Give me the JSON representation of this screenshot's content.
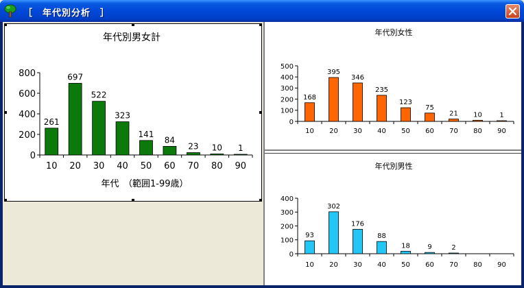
{
  "window": {
    "title": "［　年代別分析　］",
    "close_icon": "close-icon"
  },
  "colors": {
    "total": "#0B7A0B",
    "female": "#FF6600",
    "male": "#22C7F5"
  },
  "chart_data": [
    {
      "id": "total",
      "type": "bar",
      "title": "年代別男女計",
      "xlabel": "年代　（範囲1-99歳）",
      "ylabel": "",
      "categories": [
        "10",
        "20",
        "30",
        "40",
        "50",
        "60",
        "70",
        "80",
        "90"
      ],
      "values": [
        261,
        697,
        522,
        323,
        141,
        84,
        23,
        10,
        1
      ],
      "ylim": [
        0,
        800
      ],
      "yticks": [
        "0",
        "200",
        "400",
        "600",
        "800"
      ],
      "grid": false
    },
    {
      "id": "female",
      "type": "bar",
      "title": "年代別女性",
      "xlabel": "",
      "ylabel": "",
      "categories": [
        "10",
        "20",
        "30",
        "40",
        "50",
        "60",
        "70",
        "80",
        "90"
      ],
      "values": [
        168,
        395,
        346,
        235,
        123,
        75,
        21,
        10,
        1
      ],
      "ylim": [
        0,
        500
      ],
      "yticks": [
        "0",
        "100",
        "200",
        "300",
        "400",
        "500"
      ],
      "grid": false
    },
    {
      "id": "male",
      "type": "bar",
      "title": "年代別男性",
      "xlabel": "",
      "ylabel": "",
      "categories": [
        "10",
        "20",
        "30",
        "40",
        "50",
        "60",
        "70",
        "80",
        "90"
      ],
      "values": [
        93,
        302,
        176,
        88,
        18,
        9,
        2,
        null,
        null
      ],
      "ylim": [
        0,
        400
      ],
      "yticks": [
        "0",
        "100",
        "200",
        "300",
        "400"
      ],
      "grid": false
    }
  ]
}
